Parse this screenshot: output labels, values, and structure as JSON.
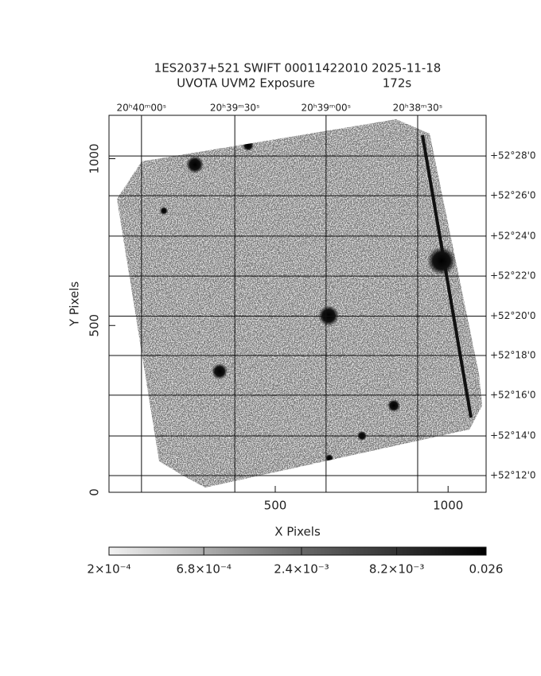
{
  "chart_data": {
    "type": "image",
    "title": "1ES2037+521 SWIFT 00011422010 2025-11-18",
    "subtitle": "UVOTA UVM2 Exposure",
    "exposure": "172s",
    "xlabel": "X Pixels",
    "ylabel": "Y Pixels",
    "xlim": [
      19,
      1110
    ],
    "ylim": [
      0,
      1130
    ],
    "xticks": [
      500,
      1000
    ],
    "yticks": [
      0,
      500,
      1000
    ],
    "grid": true,
    "x2ticks": [
      {
        "value": 113,
        "label": "20ʰ40ᵐ00ˢ"
      },
      {
        "value": 383,
        "label": "20ʰ39ᵐ30ˢ"
      },
      {
        "value": 647,
        "label": "20ʰ39ᵐ00ˢ"
      },
      {
        "value": 912,
        "label": "20ʰ38ᵐ30ˢ"
      }
    ],
    "y2ticks": [
      {
        "value": 1008,
        "label": "+52°28'0"
      },
      {
        "value": 889,
        "label": "+52°26'0"
      },
      {
        "value": 768,
        "label": "+52°24'0"
      },
      {
        "value": 648,
        "label": "+52°22'0"
      },
      {
        "value": 528,
        "label": "+52°20'0"
      },
      {
        "value": 410,
        "label": "+52°18'0"
      },
      {
        "value": 291,
        "label": "+52°16'0"
      },
      {
        "value": 169,
        "label": "+52°14'0"
      },
      {
        "value": 50,
        "label": "+52°12'0"
      }
    ],
    "colorbar": {
      "scale": "log",
      "lim": [
        0.0002,
        0.026
      ],
      "ticks": [
        {
          "value": 0.0002,
          "label": "2×10⁻⁴"
        },
        {
          "value": 0.00068,
          "label": "6.8×10⁻⁴"
        },
        {
          "value": 0.0024,
          "label": "2.4×10⁻³"
        },
        {
          "value": 0.0082,
          "label": "8.2×10⁻³"
        },
        {
          "value": 0.026,
          "label": "0.026"
        }
      ]
    }
  }
}
